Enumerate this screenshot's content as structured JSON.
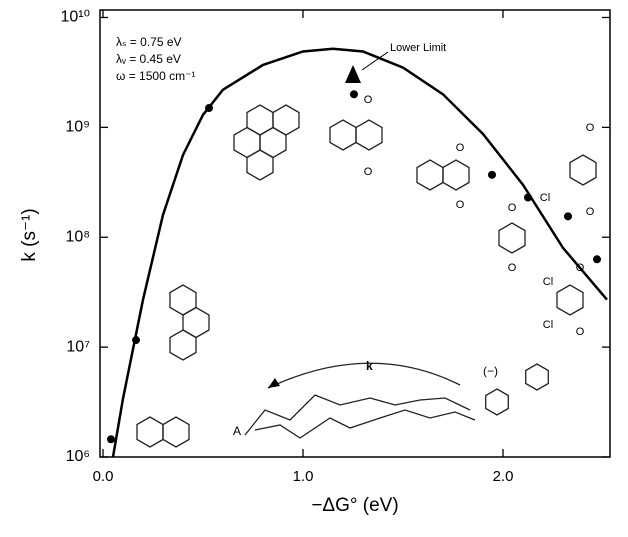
{
  "chart_data": {
    "type": "scatter",
    "x_label": "−ΔG° (eV)",
    "y_label": "k (s⁻¹)",
    "y_scale": "log",
    "xlim": [
      -0.015,
      2.535
    ],
    "ylim": [
      1000000,
      11700000000
    ],
    "xticks": [
      {
        "value": 0,
        "label": "0.0"
      },
      {
        "value": 1,
        "label": "1.0"
      },
      {
        "value": 2,
        "label": "2.0"
      }
    ],
    "yticks": [
      {
        "value": 1000000,
        "label": "10⁶"
      },
      {
        "value": 10000000,
        "label": "10⁷"
      },
      {
        "value": 100000000,
        "label": "10⁸"
      },
      {
        "value": 1000000000,
        "label": "10⁹"
      },
      {
        "value": 10000000000,
        "label": "10¹⁰"
      }
    ],
    "color": "#000000",
    "points": {
      "x": [
        0.04,
        0.165,
        0.53,
        1.255,
        1.945,
        2.125,
        2.325,
        2.47
      ],
      "y": [
        1450000,
        11600000,
        1500000000,
        2000000000,
        370000000,
        230000000,
        155000000,
        63000000
      ]
    },
    "lower_limit": {
      "x": 1.25,
      "y": 3000000000,
      "label": "Lower Limit"
    },
    "curve": {
      "x": [
        0.05,
        0.1,
        0.2,
        0.3,
        0.4,
        0.5,
        0.6,
        0.8,
        1.0,
        1.15,
        1.3,
        1.5,
        1.7,
        1.9,
        2.1,
        2.3,
        2.52
      ],
      "y": [
        1000000,
        3400000,
        27000000,
        160000000,
        560000000,
        1300000000,
        2200000000,
        3700000000,
        4900000000,
        5200000000,
        4900000000,
        3500000000,
        2000000000,
        870000000,
        300000000,
        80000000,
        27000000
      ]
    },
    "parameters": [
      "λₛ = 0.75 eV",
      "λᵥ = 0.45 eV",
      "ω = 1500 cm⁻¹"
    ],
    "rate_arrow_label": "k",
    "chain_label": "A",
    "anion_label": "(−)",
    "structure_labels": [
      "O",
      "O",
      "O",
      "O",
      "O",
      "O",
      "Cl",
      "Cl",
      "Cl",
      "O",
      "O",
      "O",
      "O"
    ]
  }
}
